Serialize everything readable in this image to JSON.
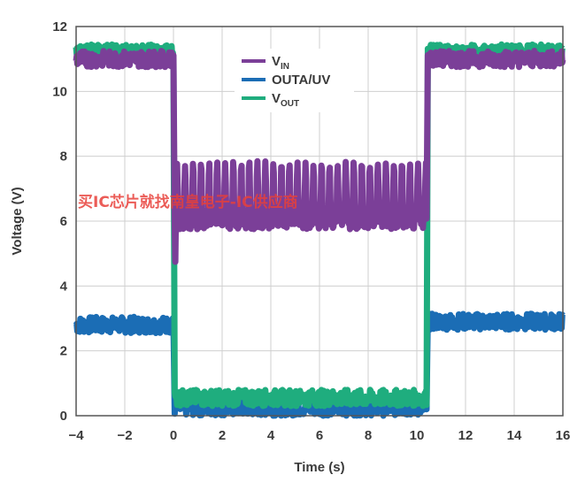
{
  "chart_data": {
    "type": "line",
    "xlabel": "Time (s)",
    "ylabel": "Voltage (V)",
    "xlim": [
      -4,
      16
    ],
    "ylim": [
      0,
      12
    ],
    "xticks": [
      "−4",
      "−2",
      "0",
      "2",
      "4",
      "6",
      "8",
      "10",
      "12",
      "14",
      "16"
    ],
    "yticks": [
      "0",
      "2",
      "4",
      "6",
      "8",
      "10",
      "12"
    ],
    "grid": true,
    "legend_position": "top-center",
    "series": [
      {
        "name": "V",
        "subscript": "IN",
        "color": "#7b3f98",
        "x": [
          -4,
          0,
          0.05,
          10.4,
          10.45,
          16
        ],
        "y": [
          11.0,
          11.0,
          6.0,
          6.0,
          11.0,
          11.0
        ],
        "ripple_peak": 7.8,
        "ripple_period_s": 0.33
      },
      {
        "name": "OUTA/UV",
        "subscript": "",
        "color": "#1b6db5",
        "x": [
          -4,
          0,
          0.05,
          10.4,
          10.45,
          16
        ],
        "y": [
          2.8,
          2.8,
          0.25,
          0.25,
          2.9,
          2.9
        ]
      },
      {
        "name": "V",
        "subscript": "OUT",
        "color": "#1fad7e",
        "x": [
          -4,
          0,
          0.05,
          10.4,
          10.45,
          16
        ],
        "y": [
          11.2,
          11.2,
          0.55,
          0.55,
          11.2,
          11.2
        ]
      }
    ]
  },
  "watermark": "买IC芯片就找南皇电子-IC供应商"
}
